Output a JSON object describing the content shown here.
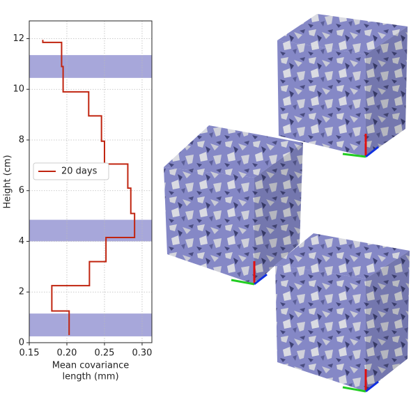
{
  "chart_data": {
    "type": "line",
    "xlabel_lines": [
      "Mean covariance",
      "length (mm)"
    ],
    "ylabel": "Height (cm)",
    "xlim": [
      0.15,
      0.313
    ],
    "ylim": [
      0,
      12.7
    ],
    "xticks": [
      0.15,
      {
        "value": 0.2,
        "label": "0.20"
      },
      0.25,
      {
        "value": 0.3,
        "label": "0.30"
      }
    ],
    "yticks": [
      0,
      2,
      4,
      6,
      8,
      10,
      12
    ],
    "grid": true,
    "legend": "center left",
    "bands": [
      [
        10.45,
        11.35
      ],
      [
        4.0,
        4.85
      ],
      [
        0.25,
        1.15
      ]
    ],
    "band_color": "#a7a7da",
    "series": [
      {
        "name": "20 days",
        "color": "#c0240f",
        "x": [
          0.168,
          0.168,
          0.193,
          0.193,
          0.195,
          0.195,
          0.229,
          0.229,
          0.246,
          0.246,
          0.25,
          0.25,
          0.281,
          0.281,
          0.285,
          0.285,
          0.29,
          0.29,
          0.252,
          0.252,
          0.23,
          0.23,
          0.18,
          0.18,
          0.203,
          0.203
        ],
        "y": [
          11.95,
          11.85,
          11.85,
          10.9,
          10.9,
          9.9,
          9.9,
          8.95,
          8.95,
          7.95,
          7.95,
          7.05,
          7.05,
          6.1,
          6.1,
          5.1,
          5.1,
          4.15,
          4.15,
          3.2,
          3.2,
          2.25,
          2.25,
          1.25,
          1.25,
          0.3
        ]
      }
    ]
  }
}
